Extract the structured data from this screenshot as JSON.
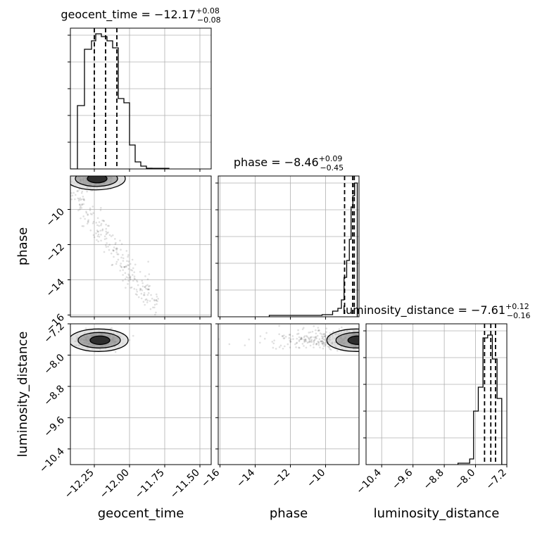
{
  "chart_data": {
    "type": "corner",
    "parameters": [
      "geocent_time",
      "phase",
      "luminosity_distance"
    ],
    "titles": [
      {
        "param": "geocent_time",
        "prefix": "geocent_time = ",
        "median": "−12.17",
        "plus": "+0.08",
        "minus": "−0.08"
      },
      {
        "param": "phase",
        "prefix": "phase = ",
        "median": "−8.46",
        "plus": "+0.09",
        "minus": "−0.45"
      },
      {
        "param": "luminosity_distance",
        "prefix": "luminosity_distance = ",
        "median": "−7.61",
        "plus": "+0.12",
        "minus": "−0.16"
      }
    ],
    "axes": {
      "geocent_time": {
        "range": [
          -12.42,
          -11.42
        ],
        "ticks": [
          -12.25,
          -12.0,
          -11.75,
          -11.5
        ],
        "tick_labels": [
          "−12.25",
          "−12.00",
          "−11.75",
          "−11.50"
        ],
        "label": "geocent_time"
      },
      "phase": {
        "range": [
          -16.1,
          -8.1
        ],
        "ticks": [
          -16,
          -14,
          -12,
          -10
        ],
        "tick_labels": [
          "−16",
          "−14",
          "−12",
          "−10"
        ],
        "label": "phase"
      },
      "luminosity_distance": {
        "range": [
          -10.8,
          -7.2
        ],
        "ticks": [
          -10.4,
          -9.6,
          -8.8,
          -8.0,
          -7.2
        ],
        "tick_labels": [
          "−10.4",
          "−9.6",
          "−8.8",
          "−8.0",
          "−7.2"
        ],
        "label": "luminosity_distance"
      }
    },
    "histograms": {
      "geocent_time": {
        "quantiles": [
          -12.25,
          -12.17,
          -12.09
        ],
        "bins": [
          [
            -12.42,
            -12.37,
            0.0
          ],
          [
            -12.37,
            -12.32,
            0.45
          ],
          [
            -12.32,
            -12.27,
            0.85
          ],
          [
            -12.27,
            -12.24,
            0.91
          ],
          [
            -12.24,
            -12.2,
            0.96
          ],
          [
            -12.2,
            -12.16,
            0.94
          ],
          [
            -12.16,
            -12.12,
            0.91
          ],
          [
            -12.12,
            -12.08,
            0.86
          ],
          [
            -12.08,
            -12.04,
            0.5
          ],
          [
            -12.04,
            -12.0,
            0.47
          ],
          [
            -12.0,
            -11.96,
            0.17
          ],
          [
            -11.96,
            -11.92,
            0.05
          ],
          [
            -11.92,
            -11.88,
            0.02
          ],
          [
            -11.88,
            -11.84,
            0.005
          ],
          [
            -11.84,
            -11.72,
            0.004
          ]
        ]
      },
      "phase": {
        "quantiles": [
          -8.92,
          -8.46,
          -8.37
        ],
        "bins": [
          [
            -13.2,
            -10.2,
            0.01
          ],
          [
            -10.2,
            -9.6,
            0.015
          ],
          [
            -9.6,
            -9.3,
            0.04
          ],
          [
            -9.3,
            -9.1,
            0.06
          ],
          [
            -9.1,
            -8.95,
            0.12
          ],
          [
            -8.95,
            -8.8,
            0.28
          ],
          [
            -8.8,
            -8.65,
            0.4
          ],
          [
            -8.65,
            -8.55,
            0.55
          ],
          [
            -8.55,
            -8.45,
            0.78
          ],
          [
            -8.45,
            -8.35,
            0.86
          ],
          [
            -8.35,
            -8.2,
            0.95
          ]
        ]
      },
      "luminosity_distance": {
        "quantiles": [
          -7.77,
          -7.61,
          -7.49
        ],
        "bins": [
          [
            -8.45,
            -8.15,
            0.01
          ],
          [
            -8.15,
            -8.05,
            0.04
          ],
          [
            -8.05,
            -7.93,
            0.38
          ],
          [
            -7.93,
            -7.81,
            0.55
          ],
          [
            -7.81,
            -7.69,
            0.9
          ],
          [
            -7.69,
            -7.57,
            0.92
          ],
          [
            -7.57,
            -7.45,
            0.75
          ],
          [
            -7.45,
            -7.33,
            0.47
          ],
          [
            -7.33,
            -7.2,
            0.0
          ]
        ]
      }
    },
    "joint": [
      {
        "x": "geocent_time",
        "y": "phase",
        "center": [
          -12.24,
          -8.25
        ],
        "spread": [
          0.06,
          0.22
        ]
      },
      {
        "x": "geocent_time",
        "y": "luminosity_distance",
        "center": [
          -12.22,
          -7.62
        ],
        "spread": [
          0.07,
          0.09
        ]
      },
      {
        "x": "phase",
        "y": "luminosity_distance",
        "center": [
          -8.25,
          -7.62
        ],
        "spread": [
          0.2,
          0.1
        ]
      }
    ],
    "grid": true
  }
}
